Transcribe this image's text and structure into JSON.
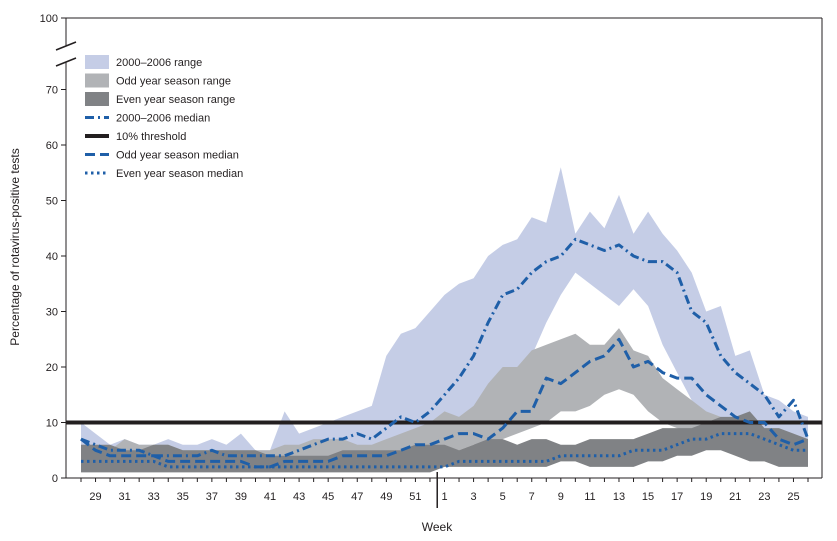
{
  "chart_data": {
    "type": "area",
    "title": "",
    "xlabel": "Week",
    "ylabel": "Percentage of rotavirus-positive tests",
    "ylim": [
      0,
      100
    ],
    "y_axis_break": [
      75,
      95
    ],
    "y_ticks": [
      0,
      10,
      20,
      30,
      40,
      50,
      60,
      70,
      100
    ],
    "x_ticks": [
      "29",
      "31",
      "33",
      "35",
      "37",
      "39",
      "41",
      "43",
      "45",
      "47",
      "49",
      "51",
      "1",
      "3",
      "5",
      "7",
      "9",
      "11",
      "13",
      "15",
      "17",
      "19",
      "21",
      "23",
      "25"
    ],
    "x_weeks": [
      28,
      29,
      30,
      31,
      32,
      33,
      34,
      35,
      36,
      37,
      38,
      39,
      40,
      41,
      42,
      43,
      44,
      45,
      46,
      47,
      48,
      49,
      50,
      51,
      52,
      1,
      2,
      3,
      4,
      5,
      6,
      7,
      8,
      9,
      10,
      11,
      12,
      13,
      14,
      15,
      16,
      17,
      18,
      19,
      20,
      21,
      22,
      23,
      24,
      25,
      26
    ],
    "year_boundary_after_week": 52,
    "legend_position": "top-left",
    "threshold": {
      "name": "10% threshold",
      "value": 10,
      "color": "#231f20"
    },
    "ranges": [
      {
        "name": "2000–2006 range",
        "color": "#c5cde6",
        "low": [
          3,
          2,
          2,
          3,
          3,
          2,
          2,
          2,
          2,
          2,
          2,
          2,
          2,
          2,
          2,
          2,
          2,
          2,
          2,
          2,
          3,
          3,
          4,
          4,
          5,
          6,
          8,
          10,
          12,
          14,
          17,
          22,
          28,
          33,
          37,
          35,
          33,
          31,
          34,
          31,
          24,
          19,
          14,
          11,
          10,
          9,
          8,
          7,
          6,
          5,
          4
        ],
        "high": [
          10,
          8,
          6,
          7,
          6,
          6,
          7,
          6,
          6,
          7,
          6,
          8,
          5,
          5,
          12,
          8,
          9,
          10,
          11,
          12,
          13,
          22,
          26,
          27,
          30,
          33,
          35,
          36,
          40,
          42,
          43,
          47,
          46,
          56,
          44,
          48,
          45,
          51,
          44,
          48,
          44,
          41,
          37,
          30,
          31,
          22,
          23,
          15,
          14,
          12,
          11
        ]
      },
      {
        "name": "Odd year season range",
        "color": "#b1b3b6",
        "low": [
          2,
          2,
          2,
          2,
          2,
          2,
          2,
          2,
          2,
          2,
          2,
          2,
          2,
          2,
          2,
          2,
          2,
          2,
          2,
          2,
          2,
          3,
          3,
          3,
          4,
          4,
          5,
          6,
          6,
          7,
          8,
          9,
          10,
          12,
          12,
          13,
          15,
          16,
          15,
          12,
          10,
          9,
          8,
          7,
          6,
          5,
          4,
          4,
          3,
          3,
          3
        ],
        "high": [
          6,
          6,
          5,
          7,
          6,
          6,
          6,
          5,
          5,
          5,
          5,
          5,
          5,
          5,
          6,
          6,
          7,
          7,
          7,
          6,
          6,
          7,
          8,
          9,
          10,
          12,
          11,
          13,
          17,
          20,
          20,
          23,
          24,
          25,
          26,
          24,
          24,
          27,
          23,
          22,
          18,
          16,
          14,
          12,
          11,
          10,
          9,
          8,
          8,
          7,
          6
        ]
      },
      {
        "name": "Even year season range",
        "color": "#808285",
        "low": [
          1,
          1,
          1,
          1,
          1,
          1,
          1,
          1,
          1,
          1,
          1,
          1,
          1,
          1,
          1,
          1,
          1,
          1,
          1,
          1,
          1,
          1,
          1,
          1,
          1,
          2,
          2,
          2,
          2,
          2,
          2,
          2,
          2,
          3,
          3,
          2,
          2,
          2,
          2,
          3,
          3,
          4,
          4,
          5,
          5,
          4,
          3,
          3,
          2,
          2,
          2
        ],
        "high": [
          6,
          6,
          6,
          5,
          5,
          6,
          6,
          5,
          5,
          5,
          5,
          5,
          5,
          4,
          4,
          4,
          4,
          4,
          5,
          5,
          5,
          5,
          5,
          6,
          6,
          6,
          5,
          6,
          7,
          7,
          6,
          7,
          7,
          6,
          6,
          7,
          7,
          7,
          7,
          8,
          9,
          9,
          9,
          10,
          11,
          11,
          12,
          9,
          9,
          8,
          7
        ]
      }
    ],
    "series": [
      {
        "name": "2000–2006 median",
        "color": "#1f5fa8",
        "dash": "dashdot",
        "values": [
          7,
          6,
          5,
          5,
          5,
          4,
          4,
          4,
          4,
          5,
          4,
          4,
          4,
          4,
          4,
          5,
          6,
          7,
          7,
          8,
          7,
          9,
          11,
          10,
          12,
          15,
          18,
          22,
          28,
          33,
          34,
          37,
          39,
          40,
          43,
          42,
          41,
          42,
          40,
          39,
          39,
          37,
          30,
          28,
          22,
          19,
          17,
          15,
          11,
          14,
          7
        ]
      },
      {
        "name": "Odd year season median",
        "color": "#1f5fa8",
        "dash": "dashed",
        "values": [
          7,
          5,
          4,
          4,
          4,
          4,
          3,
          3,
          3,
          3,
          3,
          3,
          2,
          2,
          3,
          3,
          3,
          3,
          4,
          4,
          4,
          4,
          5,
          6,
          6,
          7,
          8,
          8,
          7,
          9,
          12,
          12,
          18,
          17,
          19,
          21,
          22,
          25,
          20,
          21,
          19,
          18,
          18,
          15,
          13,
          11,
          10,
          10,
          7,
          6,
          7
        ]
      },
      {
        "name": "Even year season median",
        "color": "#1f5fa8",
        "dash": "dotted",
        "values": [
          3,
          3,
          3,
          3,
          3,
          3,
          2,
          2,
          2,
          2,
          2,
          2,
          2,
          2,
          2,
          2,
          2,
          2,
          2,
          2,
          2,
          2,
          2,
          2,
          2,
          2,
          3,
          3,
          3,
          3,
          3,
          3,
          3,
          4,
          4,
          4,
          4,
          4,
          5,
          5,
          5,
          6,
          7,
          7,
          8,
          8,
          8,
          7,
          6,
          5,
          5
        ]
      }
    ]
  }
}
